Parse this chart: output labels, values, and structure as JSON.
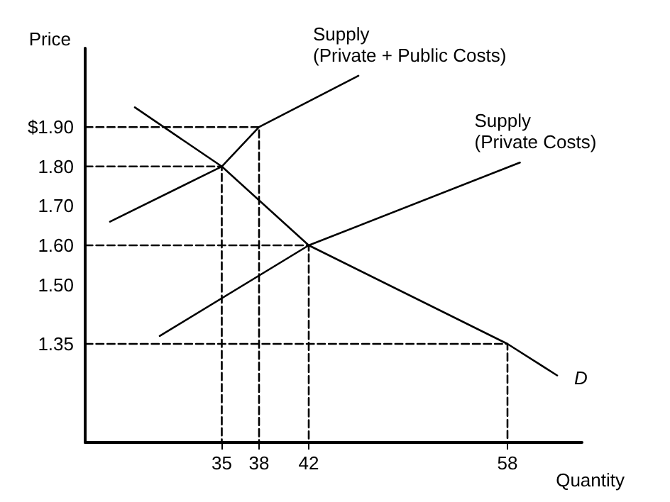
{
  "chart_data": {
    "type": "line",
    "xlabel": "Quantity",
    "ylabel": "Price",
    "xlim": [
      24,
      64
    ],
    "xticks": [
      35,
      38,
      42,
      58
    ],
    "ylim": [
      1.1,
      2.1
    ],
    "yticks": [
      {
        "value": 1.35,
        "label": "1.35"
      },
      {
        "value": 1.5,
        "label": "1.50"
      },
      {
        "value": 1.6,
        "label": "1.60"
      },
      {
        "value": 1.7,
        "label": "1.70"
      },
      {
        "value": 1.8,
        "label": "1.80"
      },
      {
        "value": 1.9,
        "label": "$1.90"
      }
    ],
    "grid": false,
    "marker": "none",
    "line_style": "solid",
    "series": [
      {
        "name": "Supply\n(Private + Public Costs)",
        "color": "#000000",
        "x": [
          26,
          35,
          38,
          46
        ],
        "values": [
          1.66,
          1.8,
          1.9,
          2.03
        ]
      },
      {
        "name": "Supply\n(Private Costs)",
        "color": "#000000",
        "x": [
          30,
          42,
          59
        ],
        "values": [
          1.37,
          1.6,
          1.81
        ]
      },
      {
        "name": "D",
        "color": "#000000",
        "x": [
          28,
          35,
          42,
          58,
          62
        ],
        "values": [
          1.95,
          1.8,
          1.6,
          1.35,
          1.27
        ]
      },
      {
        "color": "#000000",
        "line_style": "dashed",
        "x": [
          24,
          38,
          38
        ],
        "values": [
          1.9,
          1.9,
          1.1
        ]
      },
      {
        "color": "#000000",
        "line_style": "dashed",
        "x": [
          24,
          35,
          35
        ],
        "values": [
          1.8,
          1.8,
          1.1
        ]
      },
      {
        "color": "#000000",
        "line_style": "dashed",
        "x": [
          24,
          42,
          42
        ],
        "values": [
          1.6,
          1.6,
          1.1
        ]
      },
      {
        "color": "#000000",
        "line_style": "dashed",
        "x": [
          24,
          58,
          58
        ],
        "values": [
          1.35,
          1.35,
          1.1
        ]
      }
    ]
  }
}
